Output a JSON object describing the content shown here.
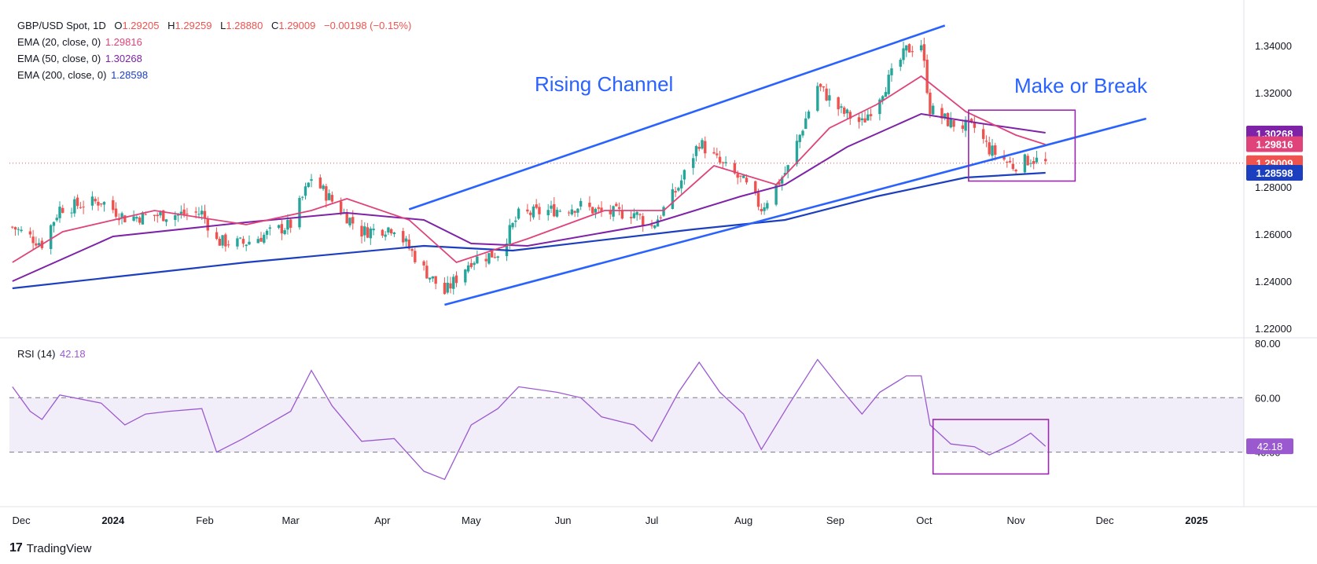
{
  "header": {
    "symbol": "GBP/USD Spot, 1D",
    "open_label": "O",
    "open": "1.29205",
    "high_label": "H",
    "high": "1.29259",
    "low_label": "L",
    "low": "1.28880",
    "close_label": "C",
    "close": "1.29009",
    "change": "−0.00198 (−0.15%)"
  },
  "indicators": [
    {
      "label": "EMA (20, close, 0)",
      "value": "1.29816",
      "color": "#e0437a"
    },
    {
      "label": "EMA (50, close, 0)",
      "value": "1.30268",
      "color": "#7e22a8"
    },
    {
      "label": "EMA (200, close, 0)",
      "value": "1.28598",
      "color": "#1c3fbf"
    }
  ],
  "rsi": {
    "label": "RSI (14)",
    "value": "42.18",
    "color": "#9b59d0"
  },
  "annotations": {
    "channel_label": "Rising Channel",
    "break_label": "Make or Break"
  },
  "colors": {
    "up": "#26a69a",
    "down": "#ef5350",
    "channel": "#2962ff",
    "box": "#9c27b0",
    "rsi_band": "#7e57c2"
  },
  "branding": {
    "name": "TradingView"
  },
  "chart_data": {
    "type": "candlestick",
    "price_axis": {
      "ticks": [
        "1.34000",
        "1.32000",
        "1.30000",
        "1.28000",
        "1.26000",
        "1.24000",
        "1.22000"
      ],
      "ylim": [
        1.216,
        1.356
      ]
    },
    "rsi_axis": {
      "ticks": [
        "80.00",
        "60.00",
        "40.00"
      ],
      "ylim": [
        20,
        82
      ],
      "band": [
        40,
        60
      ]
    },
    "x_axis_labels": [
      "Dec",
      "2024",
      "Feb",
      "Mar",
      "Apr",
      "May",
      "Jun",
      "Jul",
      "Aug",
      "Sep",
      "Oct",
      "Nov",
      "Dec",
      "2025"
    ],
    "price_tags": [
      {
        "value": "1.30268",
        "color": "#7e22a8"
      },
      {
        "value": "1.29816",
        "color": "#e0437a"
      },
      {
        "value": "1.29009",
        "color": "#ef5350"
      },
      {
        "value": "1.28598",
        "color": "#1c3fbf"
      }
    ],
    "rsi_tag": {
      "value": "42.18",
      "color": "#9b59d0"
    },
    "close_anchors": [
      [
        "2023-11-28",
        1.263
      ],
      [
        "2023-12-08",
        1.256
      ],
      [
        "2023-12-14",
        1.271
      ],
      [
        "2023-12-28",
        1.274
      ],
      [
        "2024-01-05",
        1.267
      ],
      [
        "2024-01-17",
        1.268
      ],
      [
        "2024-01-31",
        1.269
      ],
      [
        "2024-02-05",
        1.257
      ],
      [
        "2024-02-14",
        1.256
      ],
      [
        "2024-03-01",
        1.264
      ],
      [
        "2024-03-08",
        1.284
      ],
      [
        "2024-03-15",
        1.274
      ],
      [
        "2024-03-25",
        1.261
      ],
      [
        "2024-04-05",
        1.263
      ],
      [
        "2024-04-15",
        1.245
      ],
      [
        "2024-04-22",
        1.235
      ],
      [
        "2024-05-01",
        1.249
      ],
      [
        "2024-05-10",
        1.252
      ],
      [
        "2024-05-17",
        1.268
      ],
      [
        "2024-06-07",
        1.272
      ],
      [
        "2024-06-14",
        1.269
      ],
      [
        "2024-06-25",
        1.269
      ],
      [
        "2024-07-01",
        1.263
      ],
      [
        "2024-07-10",
        1.28
      ],
      [
        "2024-07-17",
        1.299
      ],
      [
        "2024-07-24",
        1.29
      ],
      [
        "2024-08-01",
        1.282
      ],
      [
        "2024-08-07",
        1.271
      ],
      [
        "2024-08-16",
        1.288
      ],
      [
        "2024-08-26",
        1.323
      ],
      [
        "2024-09-03",
        1.312
      ],
      [
        "2024-09-10",
        1.307
      ],
      [
        "2024-09-16",
        1.319
      ],
      [
        "2024-09-25",
        1.338
      ],
      [
        "2024-09-30",
        1.341
      ],
      [
        "2024-10-03",
        1.313
      ],
      [
        "2024-10-10",
        1.307
      ],
      [
        "2024-10-18",
        1.305
      ],
      [
        "2024-10-23",
        1.296
      ],
      [
        "2024-10-31",
        1.289
      ],
      [
        "2024-11-06",
        1.292
      ],
      [
        "2024-11-11",
        1.29
      ]
    ],
    "ema_20": [
      [
        "2023-11-28",
        1.248
      ],
      [
        "2023-12-15",
        1.261
      ],
      [
        "2024-01-15",
        1.27
      ],
      [
        "2024-02-15",
        1.264
      ],
      [
        "2024-03-08",
        1.27
      ],
      [
        "2024-03-20",
        1.275
      ],
      [
        "2024-04-10",
        1.266
      ],
      [
        "2024-04-26",
        1.248
      ],
      [
        "2024-05-20",
        1.258
      ],
      [
        "2024-06-15",
        1.27
      ],
      [
        "2024-07-05",
        1.27
      ],
      [
        "2024-07-22",
        1.289
      ],
      [
        "2024-08-12",
        1.281
      ],
      [
        "2024-08-30",
        1.305
      ],
      [
        "2024-09-15",
        1.315
      ],
      [
        "2024-09-30",
        1.327
      ],
      [
        "2024-10-15",
        1.312
      ],
      [
        "2024-11-01",
        1.302
      ],
      [
        "2024-11-11",
        1.298
      ]
    ],
    "ema_50": [
      [
        "2023-11-28",
        1.24
      ],
      [
        "2024-01-01",
        1.259
      ],
      [
        "2024-02-15",
        1.265
      ],
      [
        "2024-03-20",
        1.269
      ],
      [
        "2024-04-15",
        1.266
      ],
      [
        "2024-05-01",
        1.256
      ],
      [
        "2024-05-20",
        1.255
      ],
      [
        "2024-06-30",
        1.264
      ],
      [
        "2024-07-31",
        1.276
      ],
      [
        "2024-08-15",
        1.281
      ],
      [
        "2024-09-05",
        1.297
      ],
      [
        "2024-09-30",
        1.311
      ],
      [
        "2024-10-20",
        1.307
      ],
      [
        "2024-11-11",
        1.303
      ]
    ],
    "ema_200": [
      [
        "2023-11-28",
        1.237
      ],
      [
        "2024-02-15",
        1.248
      ],
      [
        "2024-04-15",
        1.255
      ],
      [
        "2024-05-15",
        1.253
      ],
      [
        "2024-07-15",
        1.262
      ],
      [
        "2024-08-15",
        1.266
      ],
      [
        "2024-09-15",
        1.276
      ],
      [
        "2024-10-15",
        1.284
      ],
      [
        "2024-11-11",
        1.286
      ]
    ],
    "rsi_series": [
      [
        "2023-11-28",
        64
      ],
      [
        "2023-12-04",
        55
      ],
      [
        "2023-12-08",
        52
      ],
      [
        "2023-12-14",
        61
      ],
      [
        "2023-12-28",
        58
      ],
      [
        "2024-01-05",
        50
      ],
      [
        "2024-01-12",
        54
      ],
      [
        "2024-01-20",
        55
      ],
      [
        "2024-01-31",
        56
      ],
      [
        "2024-02-05",
        40
      ],
      [
        "2024-02-14",
        45
      ],
      [
        "2024-03-01",
        55
      ],
      [
        "2024-03-08",
        70
      ],
      [
        "2024-03-15",
        57
      ],
      [
        "2024-03-25",
        44
      ],
      [
        "2024-04-05",
        45
      ],
      [
        "2024-04-15",
        33
      ],
      [
        "2024-04-22",
        30
      ],
      [
        "2024-05-01",
        50
      ],
      [
        "2024-05-10",
        56
      ],
      [
        "2024-05-17",
        64
      ],
      [
        "2024-05-30",
        62
      ],
      [
        "2024-06-07",
        60
      ],
      [
        "2024-06-14",
        53
      ],
      [
        "2024-06-25",
        50
      ],
      [
        "2024-07-01",
        44
      ],
      [
        "2024-07-10",
        62
      ],
      [
        "2024-07-17",
        73
      ],
      [
        "2024-07-24",
        62
      ],
      [
        "2024-08-01",
        54
      ],
      [
        "2024-08-07",
        41
      ],
      [
        "2024-08-16",
        57
      ],
      [
        "2024-08-26",
        74
      ],
      [
        "2024-09-03",
        63
      ],
      [
        "2024-09-10",
        54
      ],
      [
        "2024-09-16",
        62
      ],
      [
        "2024-09-25",
        68
      ],
      [
        "2024-09-30",
        68
      ],
      [
        "2024-10-03",
        50
      ],
      [
        "2024-10-10",
        43
      ],
      [
        "2024-10-18",
        42
      ],
      [
        "2024-10-23",
        39
      ],
      [
        "2024-10-31",
        43
      ],
      [
        "2024-11-06",
        47
      ],
      [
        "2024-11-11",
        42.18
      ]
    ],
    "channel_upper": [
      [
        "2024-04-10",
        1.2705
      ],
      [
        "2024-10-08",
        1.3485
      ]
    ],
    "channel_lower": [
      [
        "2024-04-22",
        1.23
      ],
      [
        "2024-12-15",
        1.309
      ]
    ],
    "price_box": {
      "x": [
        "2024-10-16",
        "2024-11-21"
      ],
      "y": [
        1.2825,
        1.3126
      ]
    },
    "rsi_box": {
      "x": [
        "2024-10-04",
        "2024-11-12"
      ],
      "y": [
        32,
        52
      ]
    }
  }
}
